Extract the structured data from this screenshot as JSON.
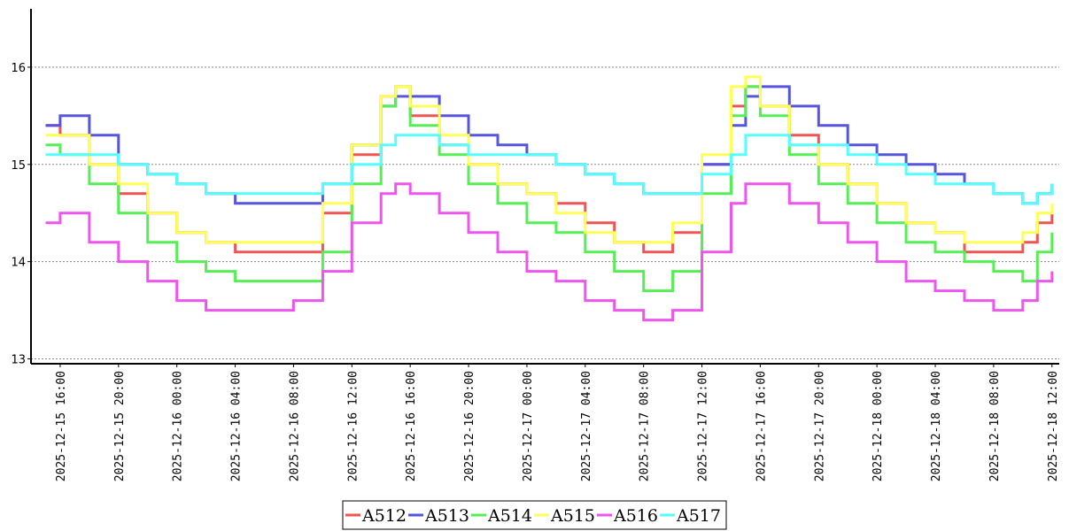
{
  "chart_data": {
    "type": "line",
    "title": "",
    "xlabel": "",
    "ylabel": "",
    "ylim": [
      12.95,
      16.6
    ],
    "xlim": [
      "2025-12-15 14:00",
      "2025-12-18 12:30"
    ],
    "grid": true,
    "legend_position": "bottom",
    "y_ticks": [
      13,
      14,
      15,
      16
    ],
    "x_ticks": [
      "2025-12-15 16:00",
      "2025-12-15 20:00",
      "2025-12-16 00:00",
      "2025-12-16 04:00",
      "2025-12-16 08:00",
      "2025-12-16 12:00",
      "2025-12-16 16:00",
      "2025-12-16 20:00",
      "2025-12-17 00:00",
      "2025-12-17 04:00",
      "2025-12-17 08:00",
      "2025-12-17 12:00",
      "2025-12-17 16:00",
      "2025-12-17 20:00",
      "2025-12-18 00:00",
      "2025-12-18 04:00",
      "2025-12-18 08:00",
      "2025-12-18 12:00"
    ],
    "x": [
      "2025-12-15 15:00",
      "2025-12-15 16:00",
      "2025-12-15 18:00",
      "2025-12-15 20:00",
      "2025-12-15 22:00",
      "2025-12-16 00:00",
      "2025-12-16 02:00",
      "2025-12-16 04:00",
      "2025-12-16 06:00",
      "2025-12-16 08:00",
      "2025-12-16 10:00",
      "2025-12-16 12:00",
      "2025-12-16 14:00",
      "2025-12-16 15:00",
      "2025-12-16 16:00",
      "2025-12-16 18:00",
      "2025-12-16 20:00",
      "2025-12-16 22:00",
      "2025-12-17 00:00",
      "2025-12-17 02:00",
      "2025-12-17 04:00",
      "2025-12-17 06:00",
      "2025-12-17 08:00",
      "2025-12-17 10:00",
      "2025-12-17 12:00",
      "2025-12-17 14:00",
      "2025-12-17 15:00",
      "2025-12-17 16:00",
      "2025-12-17 18:00",
      "2025-12-17 20:00",
      "2025-12-17 22:00",
      "2025-12-18 00:00",
      "2025-12-18 02:00",
      "2025-12-18 04:00",
      "2025-12-18 06:00",
      "2025-12-18 08:00",
      "2025-12-18 10:00",
      "2025-12-18 11:00",
      "2025-12-18 12:00"
    ],
    "series": [
      {
        "name": "A512",
        "color": "#ee5555",
        "values": [
          15.4,
          15.3,
          15.0,
          14.7,
          14.5,
          14.3,
          14.2,
          14.1,
          14.1,
          14.1,
          14.5,
          15.1,
          15.7,
          15.8,
          15.5,
          15.2,
          15.0,
          14.8,
          14.7,
          14.6,
          14.4,
          14.2,
          14.1,
          14.3,
          15.0,
          15.6,
          15.8,
          15.6,
          15.3,
          15.0,
          14.8,
          14.6,
          14.4,
          14.3,
          14.1,
          14.1,
          14.2,
          14.4,
          14.5
        ]
      },
      {
        "name": "A513",
        "color": "#5555dd",
        "values": [
          15.4,
          15.5,
          15.3,
          15.0,
          14.9,
          14.8,
          14.7,
          14.6,
          14.6,
          14.6,
          14.8,
          15.2,
          15.6,
          15.7,
          15.7,
          15.5,
          15.3,
          15.2,
          15.1,
          15.0,
          14.9,
          14.8,
          14.7,
          14.7,
          15.0,
          15.4,
          15.7,
          15.8,
          15.6,
          15.4,
          15.2,
          15.1,
          15.0,
          14.9,
          14.8,
          14.7,
          14.6,
          14.7,
          14.8
        ]
      },
      {
        "name": "A514",
        "color": "#55ee55",
        "values": [
          15.2,
          15.1,
          14.8,
          14.5,
          14.2,
          14.0,
          13.9,
          13.8,
          13.8,
          13.8,
          14.1,
          14.8,
          15.6,
          15.8,
          15.4,
          15.1,
          14.8,
          14.6,
          14.4,
          14.3,
          14.1,
          13.9,
          13.7,
          13.9,
          14.7,
          15.5,
          15.8,
          15.5,
          15.1,
          14.8,
          14.6,
          14.4,
          14.2,
          14.1,
          14.0,
          13.9,
          13.8,
          14.1,
          14.3
        ]
      },
      {
        "name": "A515",
        "color": "#ffff55",
        "values": [
          15.3,
          15.3,
          15.0,
          14.8,
          14.5,
          14.3,
          14.2,
          14.2,
          14.2,
          14.2,
          14.6,
          15.2,
          15.7,
          15.8,
          15.6,
          15.3,
          15.0,
          14.8,
          14.7,
          14.5,
          14.3,
          14.2,
          14.2,
          14.4,
          15.1,
          15.8,
          15.9,
          15.6,
          15.2,
          15.0,
          14.8,
          14.6,
          14.4,
          14.3,
          14.2,
          14.2,
          14.3,
          14.5,
          14.6
        ]
      },
      {
        "name": "A516",
        "color": "#ee55ee",
        "values": [
          14.4,
          14.5,
          14.2,
          14.0,
          13.8,
          13.6,
          13.5,
          13.5,
          13.5,
          13.6,
          13.9,
          14.4,
          14.7,
          14.8,
          14.7,
          14.5,
          14.3,
          14.1,
          13.9,
          13.8,
          13.6,
          13.5,
          13.4,
          13.5,
          14.1,
          14.6,
          14.8,
          14.8,
          14.6,
          14.4,
          14.2,
          14.0,
          13.8,
          13.7,
          13.6,
          13.5,
          13.6,
          13.8,
          13.9
        ]
      },
      {
        "name": "A517",
        "color": "#55ffff",
        "values": [
          15.1,
          15.1,
          15.1,
          15.0,
          14.9,
          14.8,
          14.7,
          14.7,
          14.7,
          14.7,
          14.8,
          15.0,
          15.2,
          15.3,
          15.3,
          15.2,
          15.1,
          15.1,
          15.1,
          15.0,
          14.9,
          14.8,
          14.7,
          14.7,
          14.9,
          15.1,
          15.3,
          15.3,
          15.2,
          15.2,
          15.1,
          15.0,
          14.9,
          14.8,
          14.8,
          14.7,
          14.6,
          14.7,
          14.8
        ]
      }
    ]
  }
}
